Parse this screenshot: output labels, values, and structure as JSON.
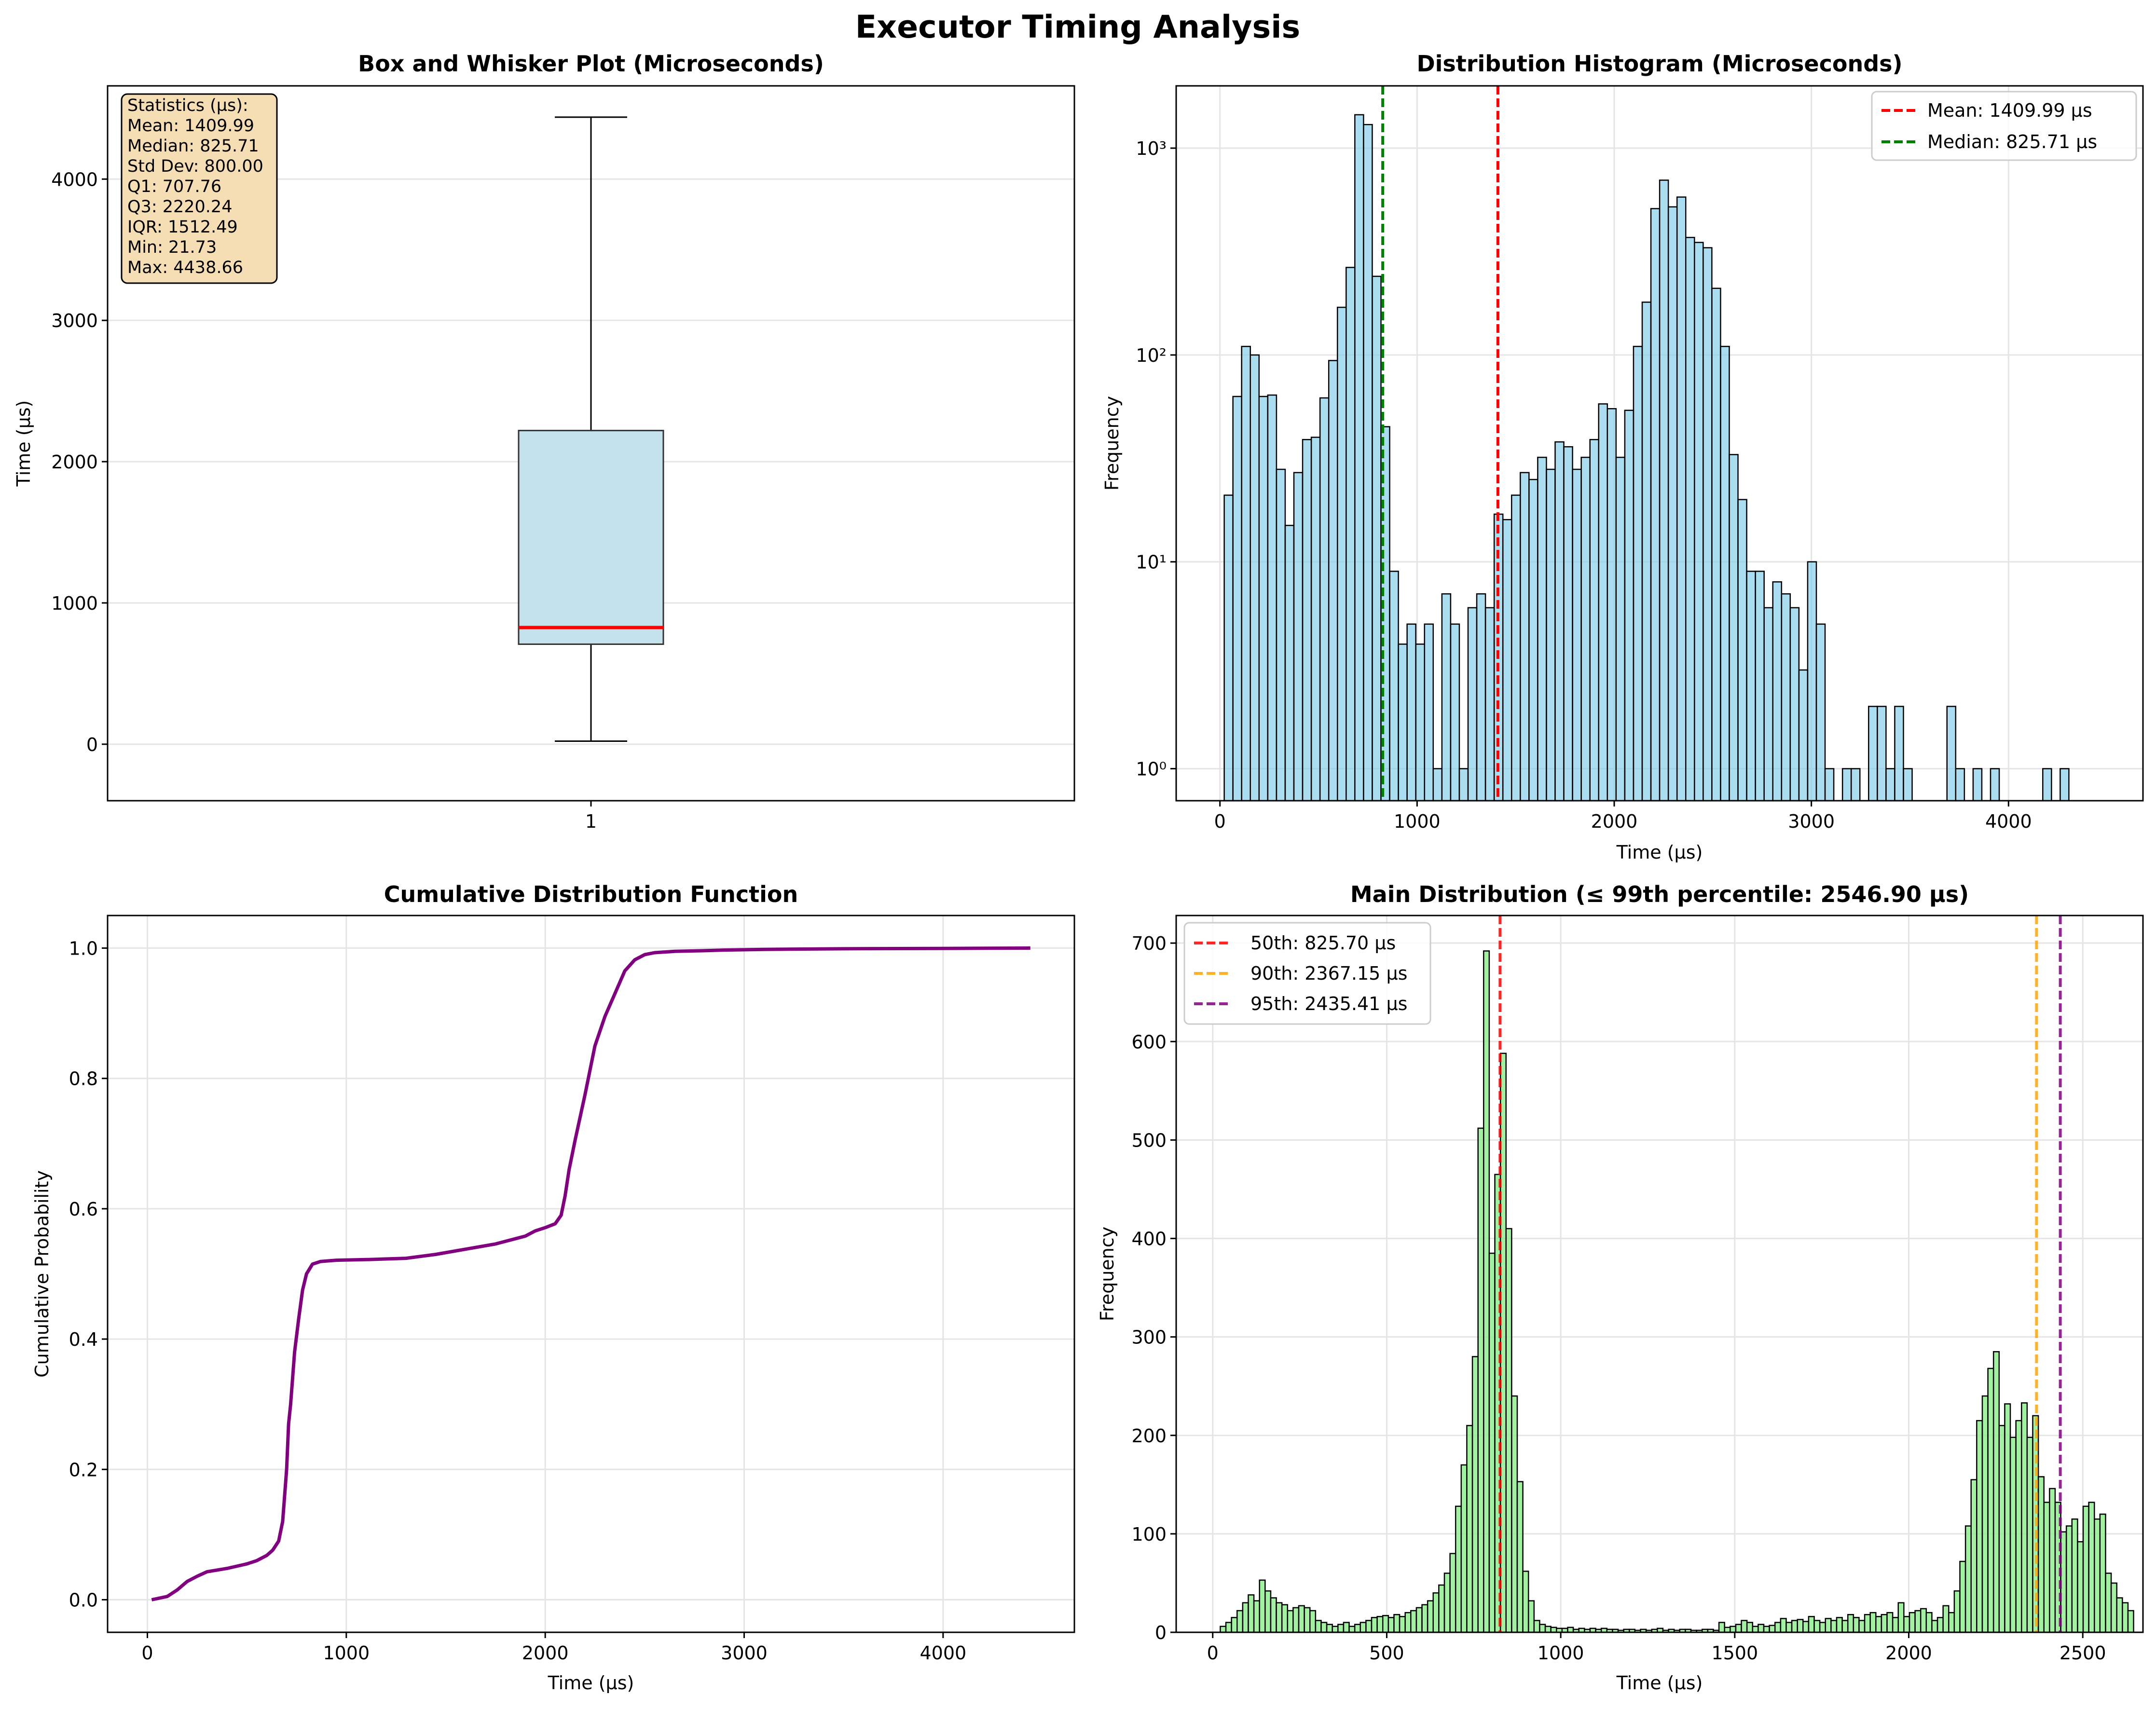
{
  "figure": {
    "suptitle": "Executor Timing Analysis"
  },
  "chart_data": [
    {
      "id": "box",
      "type": "box",
      "title": "Box and Whisker Plot (Microseconds)",
      "xlabel": "",
      "ylabel": "Time (µs)",
      "categories": [
        "1"
      ],
      "ylim": [
        -400,
        4660
      ],
      "yticks": [
        0,
        1000,
        2000,
        3000,
        4000
      ],
      "grid": true,
      "box": {
        "whisker_low": 21.73,
        "q1": 707.76,
        "median": 825.71,
        "q3": 2220.24,
        "whisker_high": 4438.66
      },
      "colors": {
        "box_fill": "#c3e2ec",
        "median": "#ff0000"
      },
      "stats_box": {
        "lines": [
          "Statistics (µs):",
          "Mean: 1409.99",
          "Median: 825.71",
          "Std Dev: 800.00",
          "Q1: 707.76",
          "Q3: 2220.24",
          "IQR: 1512.49",
          "Min: 21.73",
          "Max: 4438.66"
        ],
        "placement": "top-left",
        "color": "#f5deb3"
      }
    },
    {
      "id": "hist",
      "type": "bar",
      "title": "Distribution Histogram (Microseconds)",
      "xlabel": "Time (µs)",
      "ylabel": "Frequency",
      "yscale": "log",
      "xlim": [
        -222,
        4682
      ],
      "ylim": [
        0.7,
        2000
      ],
      "xticks": [
        0,
        1000,
        2000,
        3000,
        4000
      ],
      "yticks": [
        1,
        10,
        100,
        1000
      ],
      "ytick_labels": [
        "10⁰",
        "10¹",
        "10²",
        "10³"
      ],
      "grid": true,
      "bin_start": 21.73,
      "bin_width": 44.17,
      "values": [
        21,
        63,
        110,
        100,
        63,
        64,
        28,
        15,
        27,
        39,
        40,
        62,
        94,
        170,
        265,
        1450,
        1300,
        240,
        45,
        9,
        4,
        5,
        4,
        5,
        1,
        7,
        5,
        1,
        6,
        7,
        6,
        17,
        16,
        21,
        27,
        25,
        32,
        28,
        38,
        36,
        28,
        32,
        39,
        58,
        55,
        32,
        54,
        110,
        180,
        510,
        700,
        520,
        580,
        370,
        350,
        330,
        210,
        110,
        33,
        20,
        9,
        9,
        6,
        8,
        7,
        6,
        3,
        10,
        5,
        1,
        0,
        1,
        1,
        0,
        2,
        2,
        1,
        2,
        1,
        0,
        0,
        0,
        0,
        2,
        1,
        0,
        1,
        0,
        1,
        0,
        0,
        0,
        0,
        0,
        1,
        0,
        1
      ],
      "colors": {
        "bar": "#87ceeb"
      },
      "lines": [
        {
          "label": "Mean: 1409.99 µs",
          "x": 1409.99,
          "color": "#ff0000"
        },
        {
          "label": "Median: 825.71 µs",
          "x": 825.71,
          "color": "#008000"
        }
      ],
      "legend": "top-right"
    },
    {
      "id": "cdf",
      "type": "line",
      "title": "Cumulative Distribution Function",
      "xlabel": "Time (µs)",
      "ylabel": "Cumulative Probability",
      "xlim": [
        -200,
        4660
      ],
      "ylim": [
        -0.05,
        1.05
      ],
      "xticks": [
        0,
        1000,
        2000,
        3000,
        4000
      ],
      "yticks": [
        0.0,
        0.2,
        0.4,
        0.6,
        0.8,
        1.0
      ],
      "ytick_labels": [
        "0.0",
        "0.2",
        "0.4",
        "0.6",
        "0.8",
        "1.0"
      ],
      "grid": true,
      "colors": {
        "line": "#800080"
      },
      "x": [
        21.7,
        100,
        150,
        200,
        250,
        300,
        400,
        500,
        550,
        600,
        630,
        660,
        680,
        700,
        710,
        720,
        740,
        760,
        780,
        800,
        830,
        870,
        950,
        1100,
        1300,
        1450,
        1600,
        1750,
        1900,
        1950,
        2000,
        2050,
        2080,
        2100,
        2120,
        2150,
        2200,
        2250,
        2300,
        2350,
        2400,
        2450,
        2500,
        2550,
        2650,
        2800,
        2900,
        3100,
        3500,
        4000,
        4438.7
      ],
      "y": [
        0.0,
        0.005,
        0.015,
        0.028,
        0.036,
        0.043,
        0.048,
        0.055,
        0.06,
        0.068,
        0.076,
        0.09,
        0.12,
        0.2,
        0.27,
        0.3,
        0.38,
        0.43,
        0.475,
        0.5,
        0.515,
        0.519,
        0.521,
        0.522,
        0.524,
        0.53,
        0.538,
        0.546,
        0.558,
        0.566,
        0.571,
        0.577,
        0.59,
        0.62,
        0.66,
        0.705,
        0.775,
        0.85,
        0.895,
        0.93,
        0.965,
        0.982,
        0.99,
        0.993,
        0.995,
        0.996,
        0.997,
        0.998,
        0.999,
        0.9995,
        1.0
      ]
    },
    {
      "id": "main",
      "type": "bar",
      "title": "Main Distribution (≤ 99th percentile: 2546.90 µs)",
      "xlabel": "Time (µs)",
      "ylabel": "Frequency",
      "xlim": [
        -105,
        2673
      ],
      "ylim": [
        0,
        728
      ],
      "xticks": [
        0,
        500,
        1000,
        1500,
        2000,
        2500
      ],
      "yticks": [
        0,
        100,
        200,
        300,
        400,
        500,
        600,
        700
      ],
      "grid": true,
      "bin_start": 21.73,
      "bin_width": 16.1,
      "values": [
        6,
        10,
        15,
        22,
        30,
        38,
        32,
        53,
        42,
        35,
        30,
        28,
        22,
        25,
        27,
        25,
        22,
        12,
        10,
        8,
        6,
        8,
        10,
        6,
        8,
        10,
        12,
        15,
        16,
        17,
        15,
        18,
        16,
        20,
        22,
        25,
        28,
        32,
        40,
        48,
        60,
        80,
        128,
        170,
        210,
        280,
        512,
        692,
        385,
        465,
        588,
        410,
        240,
        153,
        62,
        32,
        12,
        8,
        6,
        5,
        4,
        4,
        5,
        3,
        4,
        3,
        4,
        3,
        4,
        3,
        3,
        2,
        3,
        3,
        2,
        3,
        2,
        3,
        4,
        2,
        3,
        2,
        3,
        3,
        2,
        2,
        3,
        3,
        2,
        10,
        5,
        6,
        8,
        12,
        10,
        6,
        8,
        6,
        7,
        10,
        14,
        10,
        12,
        13,
        11,
        16,
        12,
        10,
        14,
        12,
        15,
        12,
        18,
        15,
        12,
        18,
        20,
        16,
        18,
        20,
        15,
        30,
        16,
        20,
        22,
        24,
        20,
        12,
        15,
        27,
        20,
        42,
        72,
        108,
        155,
        215,
        240,
        268,
        285,
        210,
        232,
        198,
        215,
        233,
        198,
        220,
        158,
        132,
        146,
        132,
        102,
        108,
        115,
        92,
        128,
        132,
        115,
        120,
        60,
        50,
        35,
        30,
        22
      ],
      "colors": {
        "bar": "#90ee90"
      },
      "lines": [
        {
          "label": "50th: 825.70 µs",
          "x": 825.7,
          "color": "#ff0000"
        },
        {
          "label": "90th: 2367.15 µs",
          "x": 2367.15,
          "color": "#ffa500"
        },
        {
          "label": "95th: 2435.41 µs",
          "x": 2435.41,
          "color": "#800080"
        }
      ],
      "legend": "top-left"
    }
  ]
}
